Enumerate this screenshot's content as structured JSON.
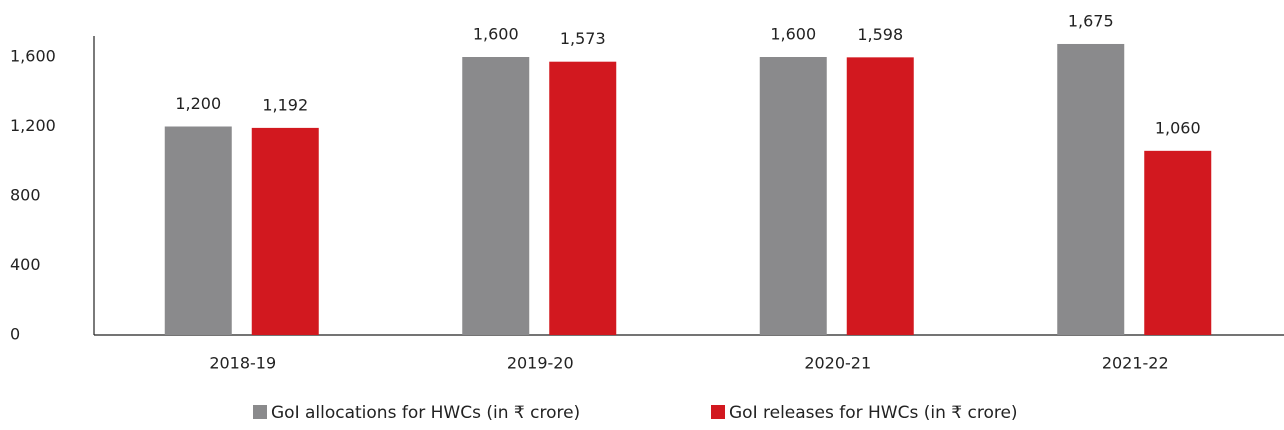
{
  "chart_data": {
    "type": "bar",
    "categories": [
      "2018-19",
      "2019-20",
      "2020-21",
      "2021-22"
    ],
    "series": [
      {
        "name": "GoI allocations for HWCs (in ₹ crore)",
        "color": "#8a8a8c",
        "values": [
          1200,
          1600,
          1600,
          1675
        ],
        "value_labels": [
          "1,200",
          "1,600",
          "1,600",
          "1,675"
        ]
      },
      {
        "name": "GoI releases for HWCs (in ₹ crore)",
        "color": "#d2181f",
        "values": [
          1192,
          1573,
          1598,
          1060
        ],
        "value_labels": [
          "1,192",
          "1,573",
          "1,598",
          "1,060"
        ]
      }
    ],
    "ylim": [
      0,
      1700
    ],
    "yticks": [
      0,
      400,
      800,
      {
        "value": 1200,
        "label": "1,200"
      },
      {
        "value": 1600,
        "label": "1,600"
      }
    ],
    "grid": false,
    "legend": "bottom"
  }
}
